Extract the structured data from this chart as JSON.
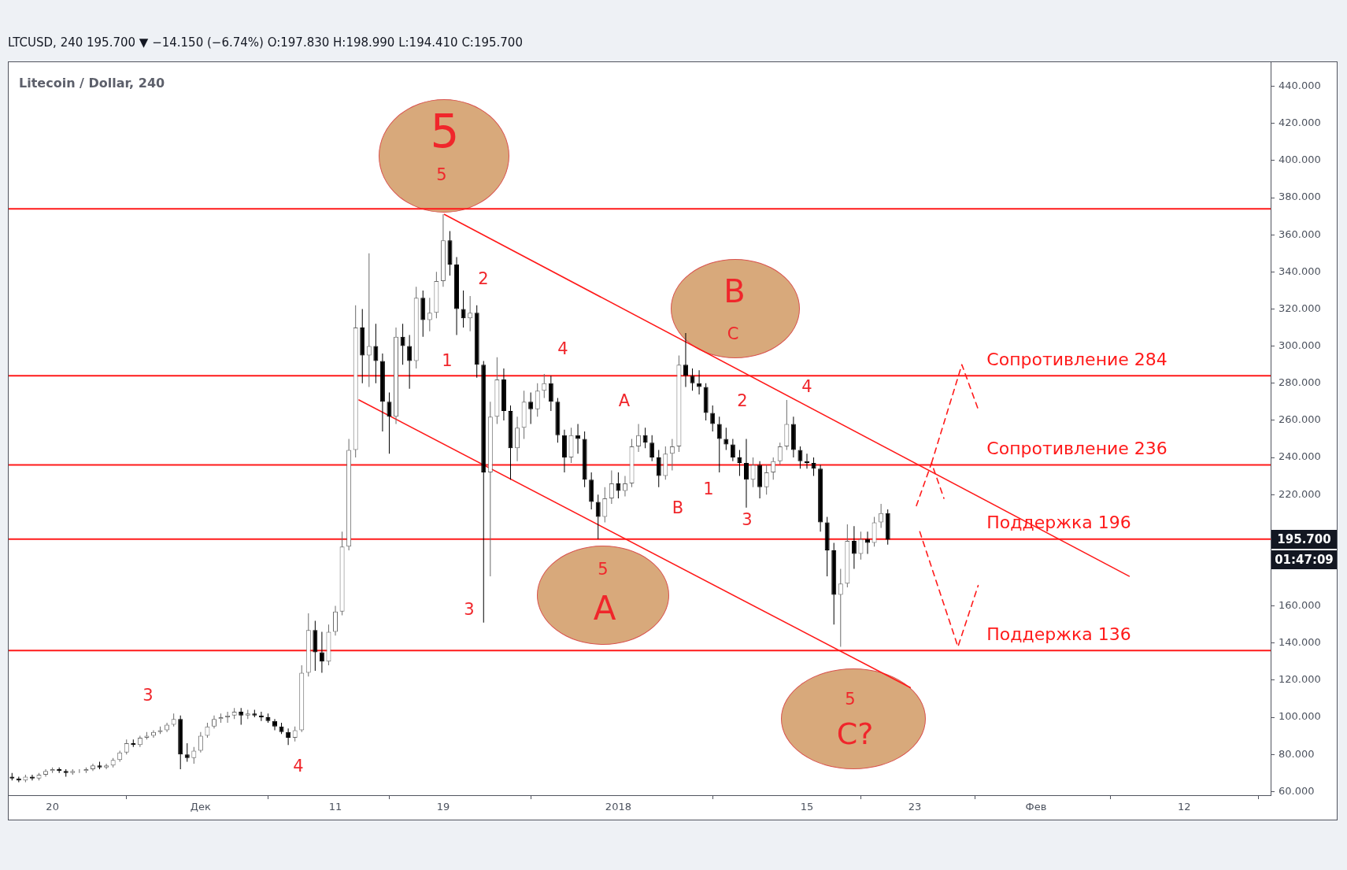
{
  "chart_data": {
    "type": "candlestick",
    "title": "LTCUSD, 240 195.700 ▼ −14.150 (−6.74%) O:197.830 H:198.990 L:194.410 C:195.700",
    "subtitle": "Litecoin / Dollar, 240",
    "xlim": [
      "2017-11-16T18:00",
      "2018-02-18T10:00"
    ],
    "xticks": [
      {
        "value": "2017-11-20",
        "label": "20"
      },
      {
        "value": "2017-12-01",
        "label": "Дек"
      },
      {
        "value": "2017-12-11",
        "label": "11"
      },
      {
        "value": "2017-12-19",
        "label": "19"
      },
      {
        "value": "2018-01-01",
        "label": "2018"
      },
      {
        "value": "2018-01-15",
        "label": "15"
      },
      {
        "value": "2018-01-23",
        "label": "23"
      },
      {
        "value": "2018-02-01",
        "label": "Фев"
      },
      {
        "value": "2018-02-12",
        "label": "12"
      }
    ],
    "ylim": [
      58,
      453
    ],
    "yticks": [
      {
        "value": 60,
        "label": "60.000"
      },
      {
        "value": 80,
        "label": "80.000"
      },
      {
        "value": 100,
        "label": "100.000"
      },
      {
        "value": 120,
        "label": "120.000"
      },
      {
        "value": 140,
        "label": "140.000"
      },
      {
        "value": 160,
        "label": "160.000"
      },
      {
        "value": 180,
        "label": null
      },
      {
        "value": 200,
        "label": null
      },
      {
        "value": 220,
        "label": "220.000"
      },
      {
        "value": 240,
        "label": "240.000"
      },
      {
        "value": 260,
        "label": "260.000"
      },
      {
        "value": 280,
        "label": "280.000"
      },
      {
        "value": 300,
        "label": "300.000"
      },
      {
        "value": 320,
        "label": "320.000"
      },
      {
        "value": 340,
        "label": "340.000"
      },
      {
        "value": 360,
        "label": "360.000"
      },
      {
        "value": 380,
        "label": "380.000"
      },
      {
        "value": 400,
        "label": "400.000"
      },
      {
        "value": 420,
        "label": "420.000"
      },
      {
        "value": 440,
        "label": "440.000"
      }
    ],
    "series": [
      {
        "x": [
          "2017-11-17T00:00",
          "2017-11-17T12:00",
          "2017-11-18T00:00",
          "2017-11-18T12:00",
          "2017-11-19T00:00",
          "2017-11-19T12:00",
          "2017-11-20T00:00",
          "2017-11-20T12:00",
          "2017-11-21T00:00",
          "2017-11-21T12:00",
          "2017-11-22T00:00",
          "2017-11-22T12:00",
          "2017-11-23T00:00",
          "2017-11-23T12:00",
          "2017-11-24T00:00",
          "2017-11-24T12:00",
          "2017-11-25T00:00",
          "2017-11-25T12:00",
          "2017-11-26T00:00",
          "2017-11-26T12:00",
          "2017-11-27T00:00",
          "2017-11-27T12:00",
          "2017-11-28T00:00",
          "2017-11-28T12:00",
          "2017-11-29T00:00",
          "2017-11-29T12:00",
          "2017-11-30T00:00",
          "2017-11-30T12:00",
          "2017-12-01T00:00",
          "2017-12-01T12:00",
          "2017-12-02T00:00",
          "2017-12-02T12:00",
          "2017-12-03T00:00",
          "2017-12-03T12:00",
          "2017-12-04T00:00",
          "2017-12-04T12:00",
          "2017-12-05T00:00",
          "2017-12-05T12:00",
          "2017-12-06T00:00",
          "2017-12-06T12:00",
          "2017-12-07T00:00",
          "2017-12-07T12:00",
          "2017-12-08T00:00",
          "2017-12-08T12:00",
          "2017-12-09T00:00",
          "2017-12-09T12:00",
          "2017-12-10T00:00",
          "2017-12-10T12:00",
          "2017-12-11T00:00",
          "2017-12-11T12:00",
          "2017-12-12T00:00",
          "2017-12-12T12:00",
          "2017-12-13T00:00",
          "2017-12-13T12:00",
          "2017-12-14T00:00",
          "2017-12-14T12:00",
          "2017-12-15T00:00",
          "2017-12-15T12:00",
          "2017-12-16T00:00",
          "2017-12-16T12:00",
          "2017-12-17T00:00",
          "2017-12-17T12:00",
          "2017-12-18T00:00",
          "2017-12-18T12:00",
          "2017-12-19T00:00",
          "2017-12-19T12:00",
          "2017-12-20T00:00",
          "2017-12-20T12:00",
          "2017-12-21T00:00",
          "2017-12-21T12:00",
          "2017-12-22T00:00",
          "2017-12-22T12:00",
          "2017-12-23T00:00",
          "2017-12-23T12:00",
          "2017-12-24T00:00",
          "2017-12-24T12:00",
          "2017-12-25T00:00",
          "2017-12-25T12:00",
          "2017-12-26T00:00",
          "2017-12-26T12:00",
          "2017-12-27T00:00",
          "2017-12-27T12:00",
          "2017-12-28T00:00",
          "2017-12-28T12:00",
          "2017-12-29T00:00",
          "2017-12-29T12:00",
          "2017-12-30T00:00",
          "2017-12-30T12:00",
          "2017-12-31T00:00",
          "2017-12-31T12:00",
          "2018-01-01T00:00",
          "2018-01-01T12:00",
          "2018-01-02T00:00",
          "2018-01-02T12:00",
          "2018-01-03T00:00",
          "2018-01-03T12:00",
          "2018-01-04T00:00",
          "2018-01-04T12:00",
          "2018-01-05T00:00",
          "2018-01-05T12:00",
          "2018-01-06T00:00",
          "2018-01-06T12:00",
          "2018-01-07T00:00",
          "2018-01-07T12:00",
          "2018-01-08T00:00",
          "2018-01-08T12:00",
          "2018-01-09T00:00",
          "2018-01-09T12:00",
          "2018-01-10T00:00",
          "2018-01-10T12:00",
          "2018-01-11T00:00",
          "2018-01-11T12:00",
          "2018-01-12T00:00",
          "2018-01-12T12:00",
          "2018-01-13T00:00",
          "2018-01-13T12:00",
          "2018-01-14T00:00",
          "2018-01-14T12:00",
          "2018-01-15T00:00",
          "2018-01-15T12:00",
          "2018-01-16T00:00",
          "2018-01-16T12:00",
          "2018-01-17T00:00",
          "2018-01-17T12:00",
          "2018-01-18T00:00",
          "2018-01-18T12:00",
          "2018-01-19T00:00",
          "2018-01-19T12:00",
          "2018-01-20T00:00",
          "2018-01-20T12:00",
          "2018-01-21T00:00"
        ],
        "ohlc": [
          [
            68,
            70,
            66,
            67
          ],
          [
            67,
            68,
            65,
            66
          ],
          [
            66,
            69,
            65,
            68
          ],
          [
            68,
            69,
            66,
            67
          ],
          [
            67,
            70,
            66,
            69
          ],
          [
            69,
            72,
            68,
            71
          ],
          [
            71,
            73,
            70,
            72
          ],
          [
            72,
            73,
            70,
            71
          ],
          [
            71,
            72,
            68,
            70
          ],
          [
            70,
            72,
            69,
            71
          ],
          [
            71,
            72,
            70,
            71
          ],
          [
            71,
            73,
            70,
            72
          ],
          [
            72,
            75,
            71,
            74
          ],
          [
            74,
            76,
            72,
            73
          ],
          [
            73,
            75,
            72,
            74
          ],
          [
            74,
            78,
            73,
            77
          ],
          [
            77,
            82,
            76,
            81
          ],
          [
            81,
            88,
            80,
            86
          ],
          [
            86,
            88,
            84,
            85
          ],
          [
            85,
            90,
            84,
            89
          ],
          [
            89,
            92,
            88,
            90
          ],
          [
            90,
            93,
            89,
            92
          ],
          [
            92,
            95,
            91,
            93
          ],
          [
            93,
            97,
            92,
            96
          ],
          [
            96,
            102,
            95,
            99
          ],
          [
            99,
            101,
            72,
            80
          ],
          [
            80,
            86,
            76,
            78
          ],
          [
            78,
            84,
            75,
            82
          ],
          [
            82,
            92,
            81,
            90
          ],
          [
            90,
            97,
            89,
            95
          ],
          [
            95,
            101,
            94,
            99
          ],
          [
            99,
            102,
            97,
            100
          ],
          [
            100,
            103,
            97,
            101
          ],
          [
            101,
            105,
            99,
            103
          ],
          [
            103,
            105,
            96,
            101
          ],
          [
            101,
            104,
            99,
            102
          ],
          [
            102,
            104,
            100,
            101
          ],
          [
            101,
            103,
            98,
            100
          ],
          [
            100,
            102,
            97,
            98
          ],
          [
            98,
            99,
            93,
            95
          ],
          [
            95,
            97,
            91,
            92
          ],
          [
            92,
            94,
            85,
            89
          ],
          [
            89,
            95,
            87,
            93
          ],
          [
            93,
            128,
            92,
            124
          ],
          [
            124,
            156,
            122,
            147
          ],
          [
            147,
            152,
            125,
            135
          ],
          [
            135,
            146,
            124,
            130
          ],
          [
            130,
            150,
            128,
            146
          ],
          [
            146,
            160,
            144,
            157
          ],
          [
            157,
            200,
            155,
            192
          ],
          [
            192,
            250,
            190,
            244
          ],
          [
            244,
            322,
            240,
            310
          ],
          [
            310,
            320,
            280,
            295
          ],
          [
            295,
            350,
            278,
            300
          ],
          [
            300,
            312,
            280,
            292
          ],
          [
            292,
            296,
            254,
            270
          ],
          [
            270,
            275,
            242,
            262
          ],
          [
            262,
            310,
            258,
            305
          ],
          [
            305,
            312,
            290,
            300
          ],
          [
            300,
            306,
            277,
            292
          ],
          [
            292,
            332,
            288,
            326
          ],
          [
            326,
            330,
            305,
            314
          ],
          [
            314,
            326,
            308,
            318
          ],
          [
            318,
            340,
            315,
            335
          ],
          [
            335,
            371,
            332,
            357
          ],
          [
            357,
            362,
            338,
            344
          ],
          [
            344,
            348,
            306,
            320
          ],
          [
            320,
            330,
            310,
            315
          ],
          [
            315,
            327,
            308,
            318
          ],
          [
            318,
            322,
            283,
            290
          ],
          [
            290,
            292,
            151,
            232
          ],
          [
            232,
            270,
            176,
            262
          ],
          [
            262,
            294,
            258,
            282
          ],
          [
            282,
            288,
            260,
            265
          ],
          [
            265,
            268,
            228,
            245
          ],
          [
            245,
            262,
            238,
            256
          ],
          [
            256,
            276,
            250,
            270
          ],
          [
            270,
            275,
            258,
            266
          ],
          [
            266,
            280,
            262,
            276
          ],
          [
            276,
            285,
            272,
            280
          ],
          [
            280,
            284,
            265,
            270
          ],
          [
            270,
            272,
            248,
            252
          ],
          [
            252,
            255,
            232,
            240
          ],
          [
            240,
            256,
            237,
            252
          ],
          [
            252,
            258,
            242,
            250
          ],
          [
            250,
            254,
            224,
            228
          ],
          [
            228,
            232,
            212,
            216
          ],
          [
            216,
            220,
            196,
            208
          ],
          [
            208,
            224,
            205,
            218
          ],
          [
            218,
            233,
            215,
            226
          ],
          [
            226,
            232,
            218,
            222
          ],
          [
            222,
            230,
            219,
            226
          ],
          [
            226,
            250,
            224,
            246
          ],
          [
            246,
            258,
            243,
            252
          ],
          [
            252,
            256,
            245,
            248
          ],
          [
            248,
            252,
            238,
            240
          ],
          [
            240,
            244,
            224,
            230
          ],
          [
            230,
            246,
            228,
            242
          ],
          [
            242,
            250,
            233,
            246
          ],
          [
            246,
            295,
            243,
            290
          ],
          [
            290,
            307,
            278,
            284
          ],
          [
            284,
            288,
            276,
            280
          ],
          [
            280,
            287,
            274,
            278
          ],
          [
            278,
            280,
            260,
            264
          ],
          [
            264,
            268,
            254,
            258
          ],
          [
            258,
            262,
            232,
            250
          ],
          [
            250,
            256,
            244,
            247
          ],
          [
            247,
            250,
            238,
            240
          ],
          [
            240,
            244,
            230,
            237
          ],
          [
            237,
            250,
            213,
            228
          ],
          [
            228,
            240,
            224,
            236
          ],
          [
            236,
            238,
            218,
            224
          ],
          [
            224,
            236,
            220,
            232
          ],
          [
            232,
            240,
            228,
            238
          ],
          [
            238,
            248,
            236,
            246
          ],
          [
            246,
            271,
            244,
            258
          ],
          [
            258,
            262,
            240,
            244
          ],
          [
            244,
            246,
            234,
            238
          ],
          [
            238,
            242,
            234,
            237
          ],
          [
            237,
            240,
            230,
            234
          ],
          [
            234,
            236,
            200,
            205
          ],
          [
            205,
            208,
            176,
            190
          ],
          [
            190,
            194,
            150,
            166
          ],
          [
            166,
            180,
            138,
            172
          ],
          [
            172,
            204,
            170,
            195
          ],
          [
            195,
            203,
            180,
            188
          ],
          [
            188,
            200,
            185,
            196
          ],
          [
            196,
            200,
            188,
            194
          ],
          [
            194,
            208,
            192,
            205
          ],
          [
            205,
            215,
            202,
            210
          ],
          [
            210,
            212,
            193,
            195.7
          ]
        ],
        "colors": [
          "#000000",
          "#000000",
          "#6b6b6b",
          "#000000",
          "#6b6b6b",
          "#6b6b6b",
          "#6b6b6b",
          "#000000",
          "#000000",
          "#6b6b6b",
          "#6b6b6b",
          "#6b6b6b",
          "#6b6b6b",
          "#000000",
          "#6b6b6b",
          "#6b6b6b",
          "#6b6b6b",
          "#6b6b6b",
          "#000000",
          "#6b6b6b",
          "#6b6b6b",
          "#6b6b6b",
          "#6b6b6b",
          "#6b6b6b",
          "#6b6b6b",
          "#000000",
          "#000000",
          "#6b6b6b",
          "#6b6b6b",
          "#6b6b6b",
          "#6b6b6b",
          "#6b6b6b",
          "#6b6b6b",
          "#6b6b6b",
          "#000000",
          "#6b6b6b",
          "#000000",
          "#000000",
          "#000000",
          "#000000",
          "#000000",
          "#000000",
          "#6b6b6b",
          "#6b6b6b",
          "#6b6b6b",
          "#000000",
          "#000000",
          "#6b6b6b",
          "#6b6b6b",
          "#6b6b6b",
          "#6b6b6b",
          "#6b6b6b",
          "#000000",
          "#6b6b6b",
          "#000000",
          "#000000",
          "#000000",
          "#6b6b6b",
          "#000000",
          "#000000",
          "#6b6b6b",
          "#000000",
          "#6b6b6b",
          "#6b6b6b",
          "#6b6b6b",
          "#000000",
          "#000000",
          "#000000",
          "#6b6b6b",
          "#000000",
          "#000000",
          "#6b6b6b",
          "#6b6b6b",
          "#000000",
          "#000000",
          "#6b6b6b",
          "#6b6b6b",
          "#000000",
          "#6b6b6b",
          "#6b6b6b",
          "#000000",
          "#000000",
          "#000000",
          "#6b6b6b",
          "#000000",
          "#000000",
          "#000000",
          "#000000",
          "#6b6b6b",
          "#6b6b6b",
          "#000000",
          "#6b6b6b",
          "#6b6b6b",
          "#6b6b6b",
          "#000000",
          "#000000",
          "#000000",
          "#6b6b6b",
          "#6b6b6b",
          "#6b6b6b",
          "#000000",
          "#000000",
          "#000000",
          "#000000",
          "#000000",
          "#000000",
          "#000000",
          "#000000",
          "#000000",
          "#000000",
          "#6b6b6b",
          "#000000",
          "#6b6b6b",
          "#6b6b6b",
          "#6b6b6b",
          "#6b6b6b",
          "#000000",
          "#000000",
          "#000000",
          "#000000",
          "#000000",
          "#000000",
          "#000000",
          "#6b6b6b",
          "#6b6b6b",
          "#000000",
          "#6b6b6b",
          "#000000",
          "#6b6b6b",
          "#6b6b6b",
          "#000000"
        ]
      },
      {
        "type": "line",
        "color": "#ff1a1a",
        "x": [
          "2017-12-19T02:00",
          "2018-02-07T22:00"
        ],
        "values": [
          371,
          176
        ]
      },
      {
        "type": "line",
        "color": "#ff1a1a",
        "x": [
          "2017-12-12T18:00",
          "2018-01-22T16:00"
        ],
        "values": [
          271,
          116
        ]
      },
      {
        "type": "line",
        "color": "#ff1a1a",
        "line_style": "dashed",
        "x": [
          "2018-01-23T03:00",
          "2018-01-24T06:00",
          "2018-01-25T04:00"
        ],
        "values": [
          214,
          237,
          218
        ]
      },
      {
        "type": "line",
        "color": "#ff1a1a",
        "line_style": "dashed",
        "x": [
          "2018-01-24T06:00",
          "2018-01-26T12:00",
          "2018-01-27T17:00"
        ],
        "values": [
          237,
          290,
          266
        ]
      },
      {
        "type": "line",
        "color": "#ff1a1a",
        "line_style": "dashed",
        "x": [
          "2018-01-23T09:00",
          "2018-01-26T05:00",
          "2018-01-27T17:00"
        ],
        "values": [
          200,
          138,
          171
        ]
      }
    ],
    "ref_lines": [
      {
        "axis": "y",
        "value": 374,
        "color": "#ff1a1a"
      },
      {
        "axis": "y",
        "value": 284,
        "label": "Сопротивление 284",
        "color": "#ff1a1a"
      },
      {
        "axis": "y",
        "value": 236,
        "label": "Сопротивление 236",
        "color": "#ff1a1a"
      },
      {
        "axis": "y",
        "value": 196,
        "label": "Поддержка 196",
        "color": "#ff1a1a"
      },
      {
        "axis": "y",
        "value": 136,
        "label": "Поддержка 136",
        "color": "#ff1a1a"
      }
    ],
    "annotations": [
      "5",
      "5",
      "2",
      "1",
      "4",
      "A",
      "B",
      "C",
      "2",
      "4",
      "1",
      "B",
      "3",
      "5",
      "A",
      "3",
      "5",
      "C?",
      "3",
      "4",
      "195.700",
      "01:47:09"
    ]
  }
}
